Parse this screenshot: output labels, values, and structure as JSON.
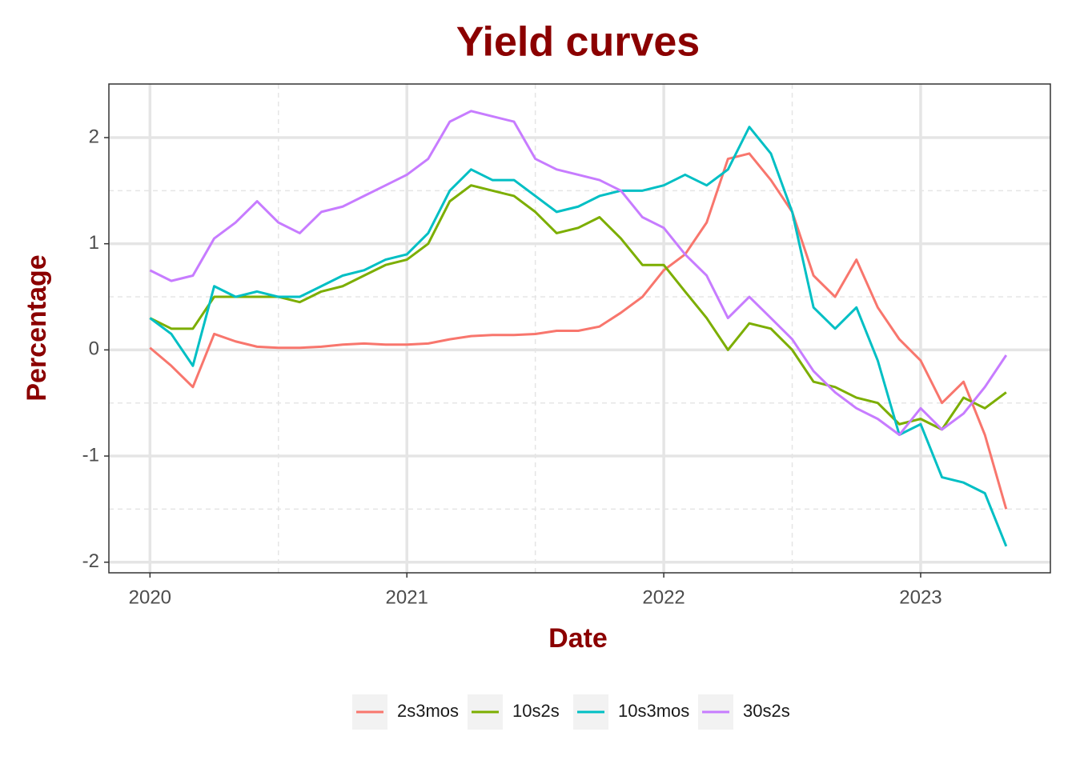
{
  "chart_data": {
    "type": "line",
    "title": "Yield curves",
    "x_label": "Date",
    "y_label": "Percentage",
    "x": [
      2020,
      2020.083,
      2020.167,
      2020.25,
      2020.333,
      2020.417,
      2020.5,
      2020.583,
      2020.667,
      2020.75,
      2020.833,
      2020.917,
      2021,
      2021.083,
      2021.167,
      2021.25,
      2021.333,
      2021.417,
      2021.5,
      2021.583,
      2021.667,
      2021.75,
      2021.833,
      2021.917,
      2022,
      2022.083,
      2022.167,
      2022.25,
      2022.333,
      2022.417,
      2022.5,
      2022.583,
      2022.667,
      2022.75,
      2022.833,
      2022.917,
      2023,
      2023.083,
      2023.167,
      2023.25,
      2023.333
    ],
    "series": [
      {
        "name": "2s3mos",
        "color": "#f8766d",
        "values": [
          0.02,
          -0.15,
          -0.35,
          0.15,
          0.08,
          0.03,
          0.02,
          0.02,
          0.03,
          0.05,
          0.06,
          0.05,
          0.05,
          0.06,
          0.1,
          0.13,
          0.14,
          0.14,
          0.15,
          0.18,
          0.18,
          0.22,
          0.35,
          0.5,
          0.75,
          0.9,
          1.2,
          1.8,
          1.85,
          1.6,
          1.3,
          0.7,
          0.5,
          0.85,
          0.4,
          0.1,
          -0.1,
          -0.5,
          -0.3,
          -0.8,
          -1.5
        ]
      },
      {
        "name": "10s2s",
        "color": "#7cae00",
        "values": [
          0.3,
          0.2,
          0.2,
          0.5,
          0.5,
          0.5,
          0.5,
          0.45,
          0.55,
          0.6,
          0.7,
          0.8,
          0.85,
          1.0,
          1.4,
          1.55,
          1.5,
          1.45,
          1.3,
          1.1,
          1.15,
          1.25,
          1.05,
          0.8,
          0.8,
          0.55,
          0.3,
          0.0,
          0.25,
          0.2,
          0.0,
          -0.3,
          -0.35,
          -0.45,
          -0.5,
          -0.7,
          -0.65,
          -0.75,
          -0.45,
          -0.55,
          -0.4
        ]
      },
      {
        "name": "10s3mos",
        "color": "#00bfc4",
        "values": [
          0.3,
          0.15,
          -0.15,
          0.6,
          0.5,
          0.55,
          0.5,
          0.5,
          0.6,
          0.7,
          0.75,
          0.85,
          0.9,
          1.1,
          1.5,
          1.7,
          1.6,
          1.6,
          1.45,
          1.3,
          1.35,
          1.45,
          1.5,
          1.5,
          1.55,
          1.65,
          1.55,
          1.7,
          2.1,
          1.85,
          1.3,
          0.4,
          0.2,
          0.4,
          -0.1,
          -0.8,
          -0.7,
          -1.2,
          -1.25,
          -1.35,
          -1.85
        ]
      },
      {
        "name": "30s2s",
        "color": "#c77cff",
        "values": [
          0.75,
          0.65,
          0.7,
          1.05,
          1.2,
          1.4,
          1.2,
          1.1,
          1.3,
          1.35,
          1.45,
          1.55,
          1.65,
          1.8,
          2.15,
          2.25,
          2.2,
          2.15,
          1.8,
          1.7,
          1.65,
          1.6,
          1.5,
          1.25,
          1.15,
          0.9,
          0.7,
          0.3,
          0.5,
          0.3,
          0.1,
          -0.2,
          -0.4,
          -0.55,
          -0.65,
          -0.8,
          -0.55,
          -0.75,
          -0.6,
          -0.35,
          -0.05
        ]
      }
    ],
    "xlim": [
      2019.84,
      2023.505
    ],
    "xticks": [
      2020,
      2021,
      2022,
      2023
    ],
    "ylim": [
      -2.1,
      2.505
    ],
    "yticks": [
      -2,
      -1,
      0,
      1,
      2
    ],
    "grid": true,
    "minor_grid": true,
    "legend": "bottom"
  }
}
